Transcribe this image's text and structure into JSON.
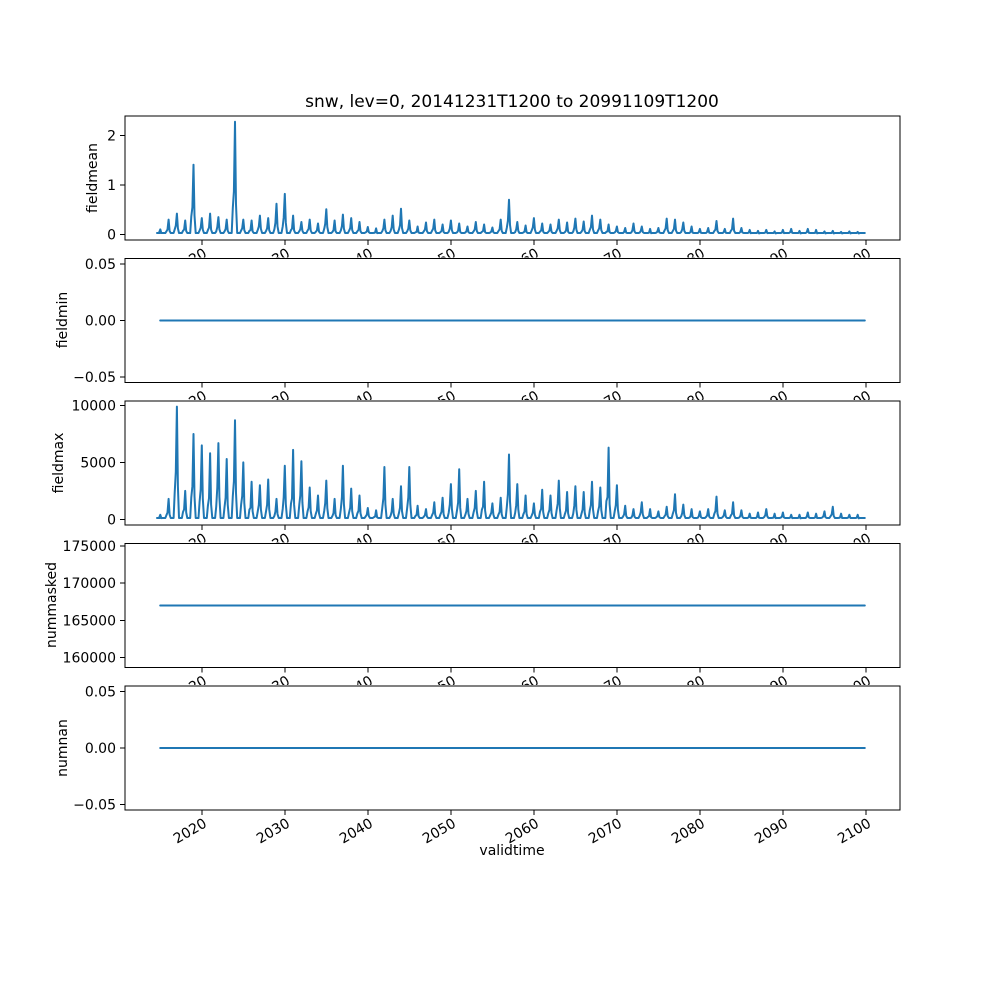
{
  "figure": {
    "title": "snw, lev=0, 20141231T1200 to 20991109T1200",
    "xlabel": "validtime",
    "line_color": "#1f77b4",
    "axis_color": "#000000",
    "background_color": "#ffffff",
    "x_ticks": [
      2020,
      2030,
      2040,
      2050,
      2060,
      2070,
      2080,
      2090,
      2100
    ],
    "x_tick_labels": [
      "2020",
      "2030",
      "2040",
      "2050",
      "2060",
      "2070",
      "2080",
      "2090",
      "2100"
    ],
    "xlim": [
      2010.75,
      2104.1
    ],
    "x_data_range": [
      2014.99,
      2099.86
    ],
    "x_tick_label_rotation_deg": 30,
    "grid": false,
    "legend": false
  },
  "chart_data": [
    {
      "type": "line",
      "name": "fieldmean",
      "title": "snw, lev=0, 20141231T1200 to 20991109T1200",
      "ylabel": "fieldmean",
      "y_ticks": [
        0,
        1,
        2
      ],
      "y_tick_labels": [
        "0",
        "1",
        "2"
      ],
      "ylim": [
        -0.114,
        2.397
      ],
      "series_kind": "annual_spikes",
      "year_start": 2015,
      "annual_peaks": [
        0.1,
        0.3,
        0.42,
        0.28,
        1.41,
        0.33,
        0.42,
        0.35,
        0.3,
        2.28,
        0.3,
        0.28,
        0.38,
        0.33,
        0.62,
        0.82,
        0.38,
        0.25,
        0.3,
        0.22,
        0.51,
        0.28,
        0.4,
        0.33,
        0.25,
        0.15,
        0.12,
        0.3,
        0.38,
        0.52,
        0.28,
        0.16,
        0.24,
        0.3,
        0.2,
        0.28,
        0.22,
        0.16,
        0.25,
        0.2,
        0.14,
        0.3,
        0.7,
        0.25,
        0.18,
        0.33,
        0.22,
        0.2,
        0.3,
        0.24,
        0.32,
        0.26,
        0.38,
        0.3,
        0.2,
        0.16,
        0.13,
        0.22,
        0.16,
        0.11,
        0.13,
        0.32,
        0.3,
        0.24,
        0.16,
        0.11,
        0.13,
        0.27,
        0.11,
        0.32,
        0.13,
        0.09,
        0.07,
        0.09,
        0.06,
        0.09,
        0.11,
        0.07,
        0.11,
        0.09,
        0.06,
        0.07,
        0.05,
        0.06,
        0.05
      ]
    },
    {
      "type": "line",
      "name": "fieldmin",
      "ylabel": "fieldmin",
      "y_ticks": [
        -0.05,
        0.0,
        0.05
      ],
      "y_tick_labels": [
        "−0.05",
        "0.00",
        "0.05"
      ],
      "ylim": [
        -0.055,
        0.055
      ],
      "series_kind": "constant",
      "constant_value": 0.0
    },
    {
      "type": "line",
      "name": "fieldmax",
      "ylabel": "fieldmax",
      "y_ticks": [
        0,
        5000,
        10000
      ],
      "y_tick_labels": [
        "0",
        "5000",
        "10000"
      ],
      "ylim": [
        -495,
        10395
      ],
      "series_kind": "annual_spikes",
      "year_start": 2015,
      "annual_peaks": [
        400,
        1800,
        9900,
        2500,
        7500,
        6500,
        5800,
        6700,
        5300,
        8700,
        5000,
        3300,
        3000,
        3500,
        1800,
        4700,
        6100,
        5100,
        2800,
        2100,
        3400,
        1800,
        4700,
        2700,
        2100,
        1000,
        800,
        4600,
        1800,
        2900,
        4600,
        1200,
        900,
        1500,
        1900,
        3100,
        4400,
        1800,
        2500,
        3300,
        1400,
        1900,
        5700,
        3100,
        2100,
        1400,
        2600,
        2100,
        3400,
        2400,
        2900,
        2400,
        3300,
        2800,
        6300,
        3000,
        1200,
        900,
        1500,
        900,
        700,
        1100,
        2200,
        1300,
        900,
        700,
        900,
        2000,
        800,
        1500,
        800,
        500,
        600,
        900,
        500,
        600,
        400,
        400,
        600,
        500,
        700,
        1100,
        500,
        400,
        400
      ]
    },
    {
      "type": "line",
      "name": "nummasked",
      "ylabel": "nummasked",
      "y_ticks": [
        160000,
        165000,
        170000,
        175000
      ],
      "y_tick_labels": [
        "160000",
        "165000",
        "170000",
        "175000"
      ],
      "ylim": [
        158650,
        175350
      ],
      "series_kind": "constant",
      "constant_value": 167000
    },
    {
      "type": "line",
      "name": "numnan",
      "ylabel": "numnan",
      "xlabel": "validtime",
      "y_ticks": [
        -0.05,
        0.0,
        0.05
      ],
      "y_tick_labels": [
        "−0.05",
        "0.00",
        "0.05"
      ],
      "ylim": [
        -0.055,
        0.055
      ],
      "series_kind": "constant",
      "constant_value": 0.0
    }
  ]
}
